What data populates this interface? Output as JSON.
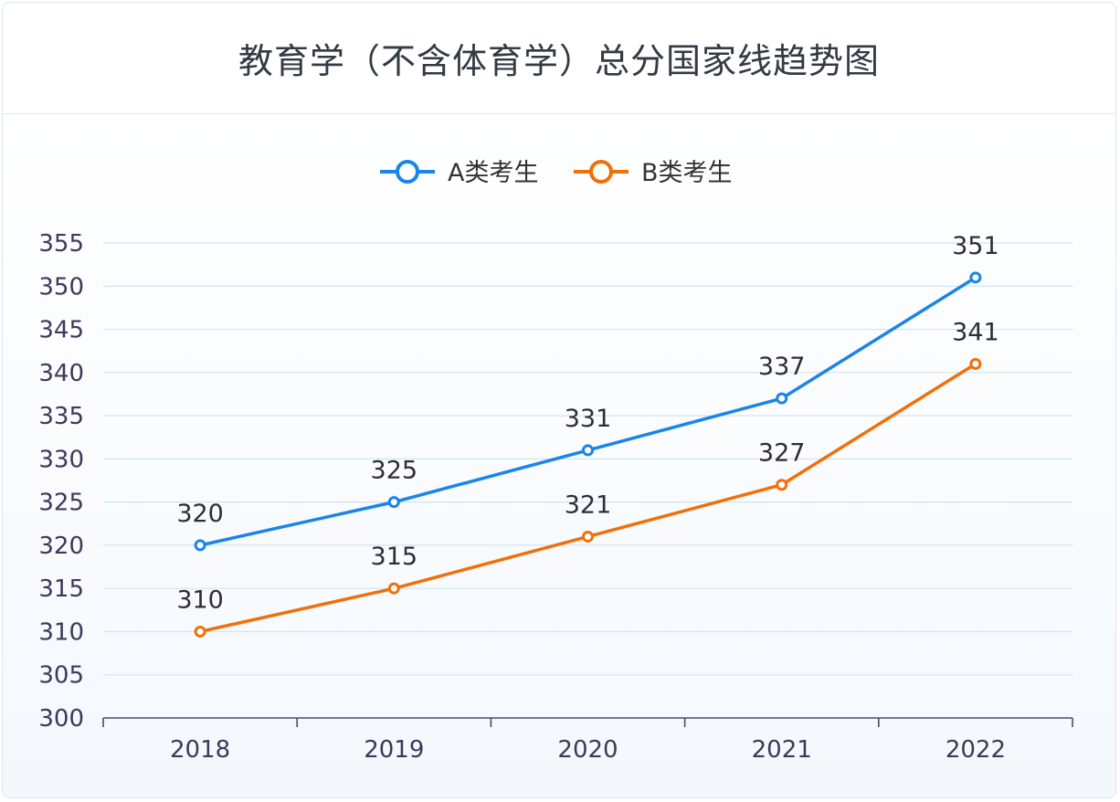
{
  "chart_data": {
    "type": "line",
    "title": "教育学（不含体育学）总分国家线趋势图",
    "categories": [
      "2018",
      "2019",
      "2020",
      "2021",
      "2022"
    ],
    "series": [
      {
        "name": "A类考生",
        "values": [
          320,
          325,
          331,
          337,
          351
        ],
        "color": "#1a84e8"
      },
      {
        "name": "B类考生",
        "values": [
          310,
          315,
          321,
          327,
          341
        ],
        "color": "#f0700a"
      }
    ],
    "ylim": [
      300,
      355
    ],
    "yticks": [
      "300",
      "305",
      "310",
      "315",
      "320",
      "325",
      "330",
      "335",
      "340",
      "345",
      "350",
      "355"
    ],
    "grid": true,
    "legend_position": "top-center",
    "xlabel": "",
    "ylabel": ""
  }
}
